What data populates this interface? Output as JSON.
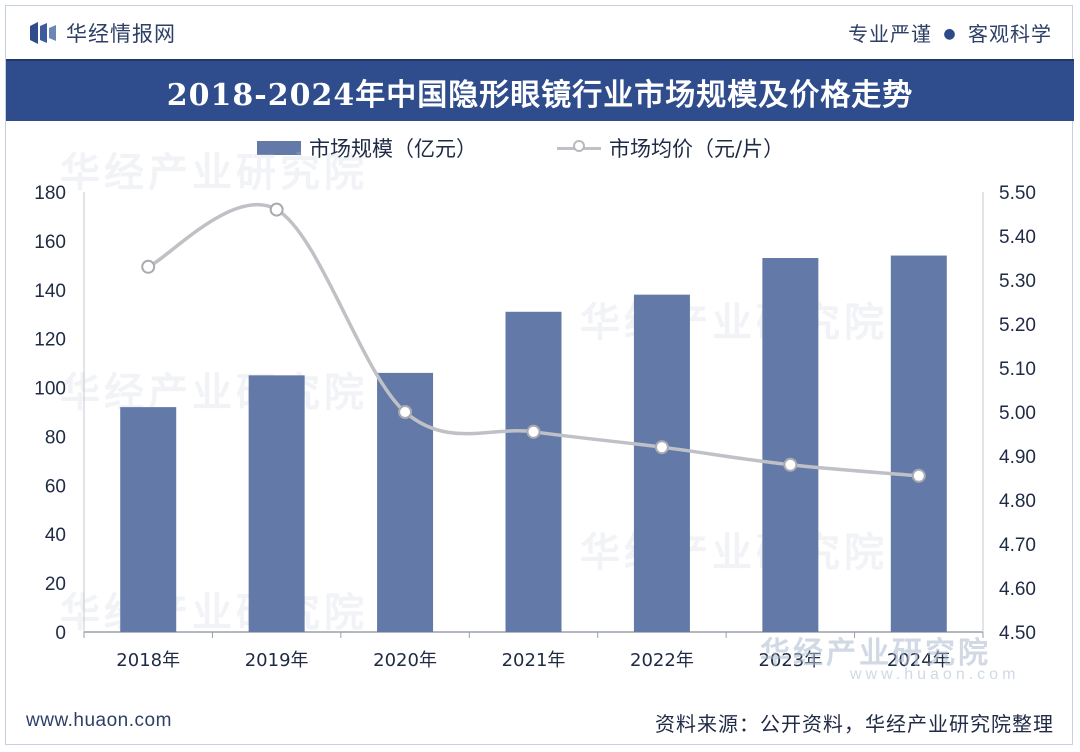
{
  "header": {
    "brand": "华经情报网",
    "slogan_left": "专业严谨",
    "slogan_dot": "●",
    "slogan_right": "客观科学"
  },
  "footer": {
    "site": "www.huaon.com",
    "source": "资料来源：公开资料，华经产业研究院整理"
  },
  "watermark": {
    "text": "华经产业研究院",
    "site": "www.huaon.com"
  },
  "colors": {
    "title_bar": "#2f4c8c",
    "bar": "#637aa9",
    "line": "#bfc1c6",
    "marker_stroke": "#a9abb0",
    "text": "#1f2a44"
  },
  "chart_data": {
    "type": "bar",
    "title": "2018-2024年中国隐形眼镜行业市场规模及价格走势",
    "categories": [
      "2018年",
      "2019年",
      "2020年",
      "2021年",
      "2022年",
      "2023年",
      "2024年"
    ],
    "series": [
      {
        "name": "市场规模（亿元）",
        "type": "bar",
        "axis": "left",
        "values": [
          92,
          105,
          106,
          131,
          138,
          153,
          154
        ]
      },
      {
        "name": "市场均价（元/片）",
        "type": "line",
        "axis": "right",
        "values": [
          5.33,
          5.46,
          5.0,
          4.955,
          4.92,
          4.88,
          4.855
        ]
      }
    ],
    "y_left": {
      "min": 0,
      "max": 180,
      "step": 20,
      "ticks": [
        "0",
        "20",
        "40",
        "60",
        "80",
        "100",
        "120",
        "140",
        "160",
        "180"
      ]
    },
    "y_right": {
      "min": 4.5,
      "max": 5.5,
      "step": 0.1,
      "ticks": [
        "4.50",
        "4.60",
        "4.70",
        "4.80",
        "4.90",
        "5.00",
        "5.10",
        "5.20",
        "5.30",
        "5.40",
        "5.50"
      ]
    },
    "legend": "top-left",
    "grid": false
  }
}
